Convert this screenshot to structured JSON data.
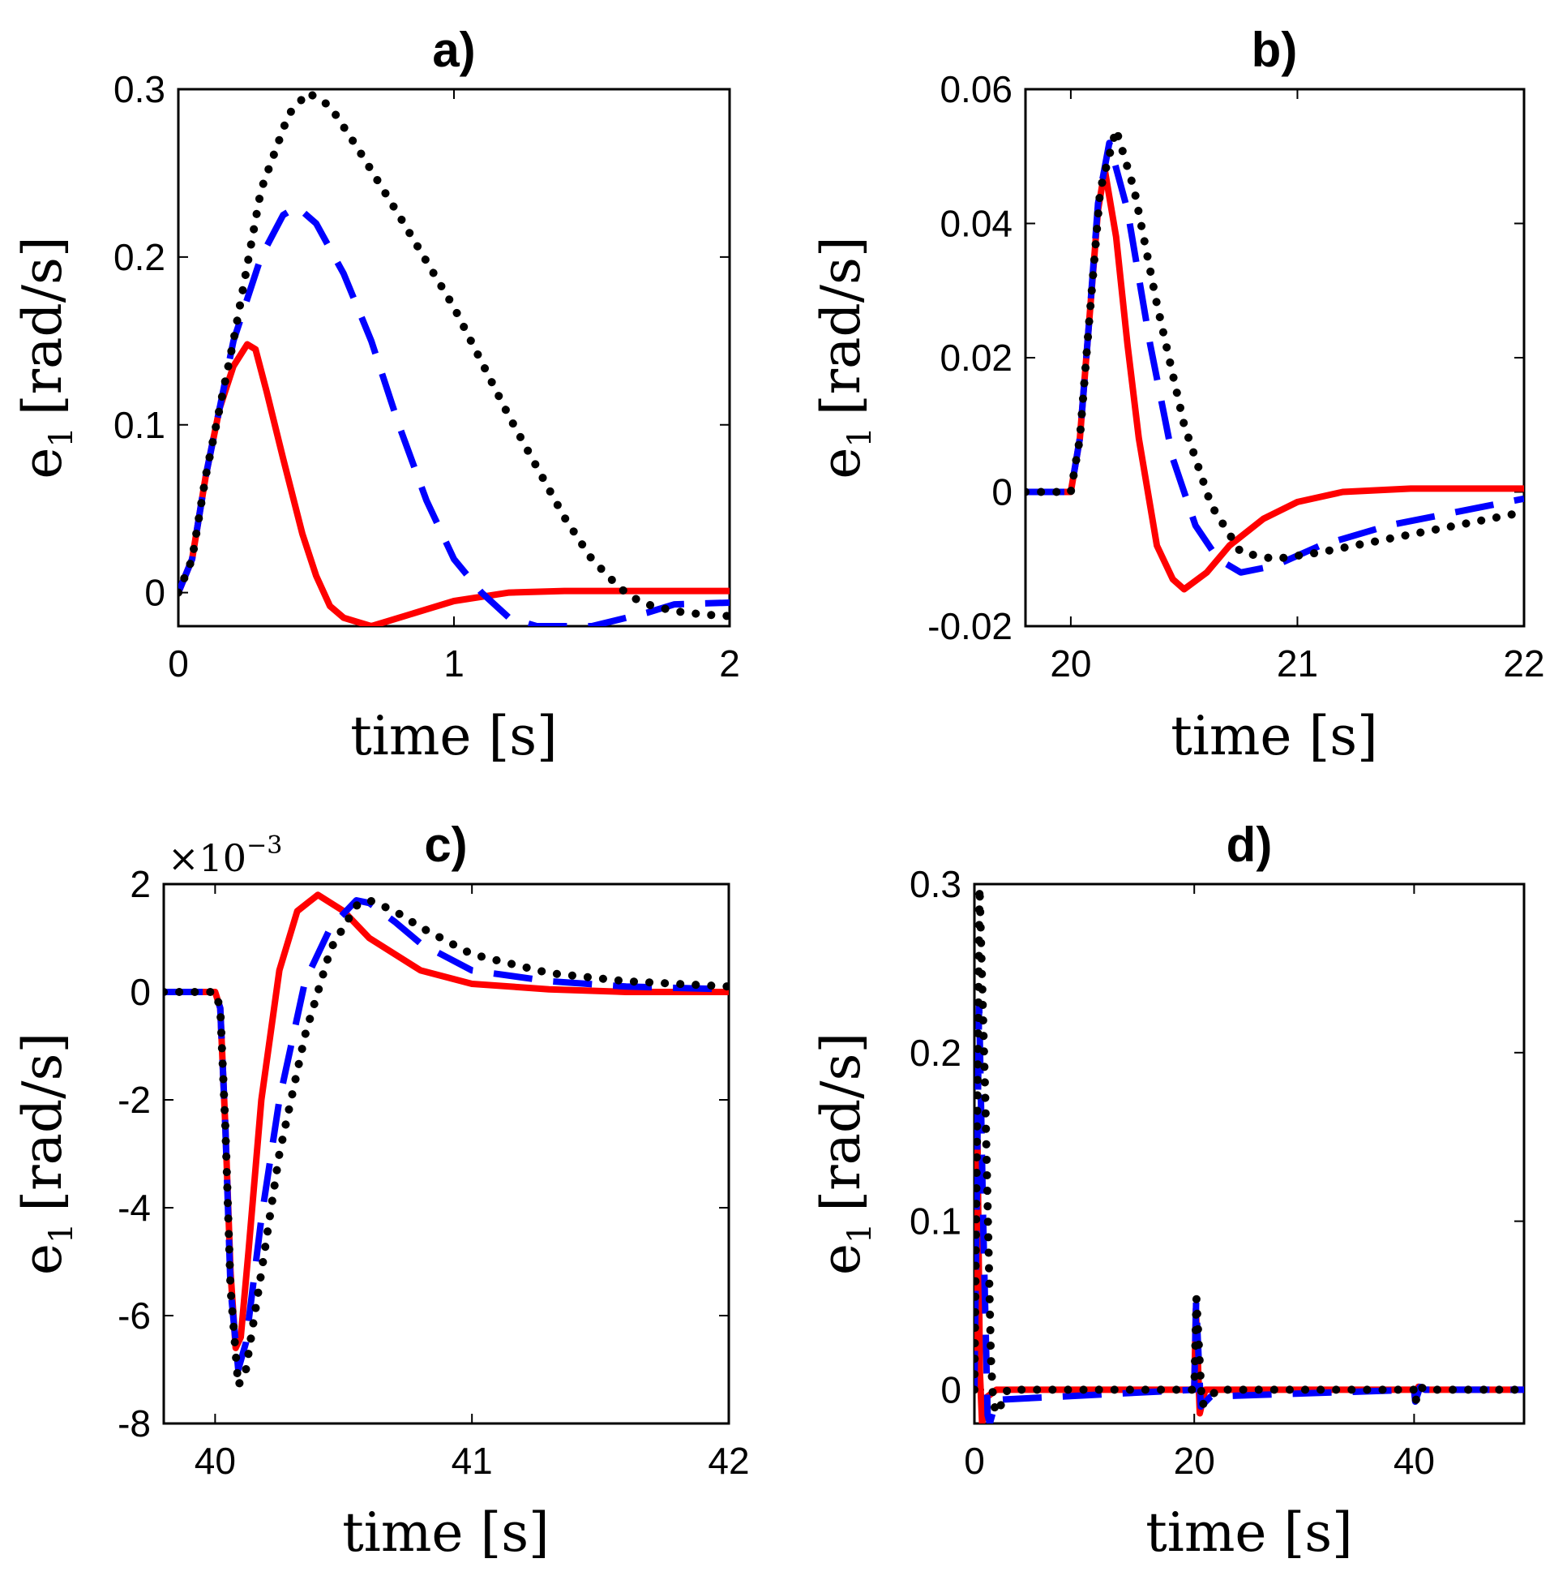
{
  "chart_data": [
    {
      "type": "line",
      "title": "a)",
      "xlabel": "time [s]",
      "ylabel": {
        "symbol": "e",
        "subscript": "1",
        "units": "[rad/s]"
      },
      "xlim": [
        0,
        2
      ],
      "ylim": [
        -0.02,
        0.3
      ],
      "xticks": [
        0,
        1,
        2
      ],
      "xtick_labels": [
        "0",
        "1",
        "2"
      ],
      "yticks": [
        0,
        0.1,
        0.2,
        0.3
      ],
      "ytick_labels": [
        "0",
        "0.1",
        "0.2",
        "0.3"
      ],
      "series": [
        {
          "name": "red-solid",
          "color": "#ff0000",
          "style": "solid",
          "x": [
            0,
            0.05,
            0.1,
            0.15,
            0.2,
            0.25,
            0.28,
            0.32,
            0.38,
            0.45,
            0.5,
            0.55,
            0.6,
            0.7,
            0.8,
            0.9,
            1.0,
            1.2,
            1.4,
            1.6,
            2.0
          ],
          "y": [
            0,
            0.02,
            0.07,
            0.11,
            0.135,
            0.148,
            0.145,
            0.12,
            0.08,
            0.035,
            0.01,
            -0.008,
            -0.015,
            -0.02,
            -0.015,
            -0.01,
            -0.005,
            0,
            0.001,
            0.001,
            0.001
          ]
        },
        {
          "name": "blue-dashed",
          "color": "#0000ff",
          "style": "dashed",
          "x": [
            0,
            0.05,
            0.1,
            0.15,
            0.2,
            0.3,
            0.38,
            0.43,
            0.5,
            0.6,
            0.7,
            0.8,
            0.9,
            1.0,
            1.1,
            1.2,
            1.3,
            1.5,
            1.7,
            1.8,
            2.0
          ],
          "y": [
            0,
            0.02,
            0.07,
            0.11,
            0.15,
            0.2,
            0.225,
            0.23,
            0.22,
            0.19,
            0.15,
            0.1,
            0.055,
            0.02,
            0,
            -0.015,
            -0.02,
            -0.02,
            -0.012,
            -0.007,
            -0.006
          ]
        },
        {
          "name": "black-dotted",
          "color": "#000000",
          "style": "dotted",
          "x": [
            0,
            0.05,
            0.1,
            0.15,
            0.2,
            0.3,
            0.4,
            0.47,
            0.55,
            0.65,
            0.8,
            1.0,
            1.2,
            1.4,
            1.5,
            1.6,
            1.65,
            1.7,
            1.8,
            1.9,
            2.0
          ],
          "y": [
            0,
            0.02,
            0.07,
            0.11,
            0.15,
            0.24,
            0.285,
            0.298,
            0.29,
            0.265,
            0.225,
            0.17,
            0.105,
            0.045,
            0.02,
            0.003,
            -0.003,
            -0.007,
            -0.011,
            -0.013,
            -0.014
          ]
        }
      ]
    },
    {
      "type": "line",
      "title": "b)",
      "xlabel": "time [s]",
      "ylabel": {
        "symbol": "e",
        "subscript": "1",
        "units": "[rad/s]"
      },
      "xlim": [
        19.8,
        22
      ],
      "ylim": [
        -0.02,
        0.06
      ],
      "xticks": [
        20,
        21,
        22
      ],
      "xtick_labels": [
        "20",
        "21",
        "22"
      ],
      "yticks": [
        -0.02,
        0,
        0.02,
        0.04,
        0.06
      ],
      "ytick_labels": [
        "-0.02",
        "0",
        "0.02",
        "0.04",
        "0.06"
      ],
      "series": [
        {
          "name": "red-solid",
          "color": "#ff0000",
          "style": "solid",
          "x": [
            19.8,
            20.0,
            20.04,
            20.08,
            20.12,
            20.15,
            20.2,
            20.25,
            20.3,
            20.38,
            20.45,
            20.5,
            20.6,
            20.7,
            20.85,
            21.0,
            21.2,
            21.5,
            22.0
          ],
          "y": [
            0,
            0,
            0.008,
            0.025,
            0.042,
            0.048,
            0.038,
            0.022,
            0.008,
            -0.008,
            -0.013,
            -0.0145,
            -0.012,
            -0.008,
            -0.004,
            -0.0015,
            0,
            0.0005,
            0.0005
          ]
        },
        {
          "name": "blue-dashed",
          "color": "#0000ff",
          "style": "dashed",
          "x": [
            19.8,
            20.0,
            20.04,
            20.08,
            20.12,
            20.17,
            20.25,
            20.35,
            20.45,
            20.55,
            20.65,
            20.75,
            20.9,
            21.1,
            21.4,
            21.7,
            22.0
          ],
          "y": [
            0,
            0,
            0.008,
            0.025,
            0.043,
            0.052,
            0.042,
            0.022,
            0.005,
            -0.005,
            -0.01,
            -0.012,
            -0.011,
            -0.008,
            -0.005,
            -0.003,
            -0.001
          ]
        },
        {
          "name": "black-dotted",
          "color": "#000000",
          "style": "dotted",
          "x": [
            19.8,
            20.0,
            20.04,
            20.08,
            20.13,
            20.2,
            20.28,
            20.38,
            20.5,
            20.62,
            20.75,
            20.9,
            21.1,
            21.4,
            21.7,
            22.0
          ],
          "y": [
            0,
            0,
            0.008,
            0.025,
            0.045,
            0.054,
            0.045,
            0.028,
            0.01,
            -0.002,
            -0.009,
            -0.01,
            -0.009,
            -0.007,
            -0.005,
            -0.003
          ]
        }
      ]
    },
    {
      "type": "line",
      "title": "c)",
      "xlabel": "time [s]",
      "ylabel": {
        "symbol": "e",
        "subscript": "1",
        "units": "[rad/s]"
      },
      "y_multiplier": {
        "base": "×10",
        "exponent": "−3"
      },
      "xlim": [
        39.8,
        42
      ],
      "ylim": [
        -8,
        2
      ],
      "xticks": [
        40,
        41,
        42
      ],
      "xtick_labels": [
        "40",
        "41",
        "42"
      ],
      "yticks": [
        -8,
        -6,
        -4,
        -2,
        0,
        2
      ],
      "ytick_labels": [
        "-8",
        "-6",
        "-4",
        "-2",
        "0",
        "2"
      ],
      "series": [
        {
          "name": "red-solid",
          "color": "#ff0000",
          "style": "solid",
          "x": [
            39.8,
            40.0,
            40.02,
            40.04,
            40.06,
            40.08,
            40.1,
            40.13,
            40.18,
            40.25,
            40.32,
            40.4,
            40.5,
            40.6,
            40.8,
            41.0,
            41.3,
            41.6,
            42.0
          ],
          "y": [
            0,
            0,
            -0.3,
            -2.5,
            -5.2,
            -6.6,
            -6.4,
            -4.8,
            -2.0,
            0.4,
            1.5,
            1.8,
            1.5,
            1.0,
            0.4,
            0.15,
            0.05,
            0,
            0
          ]
        },
        {
          "name": "blue-dashed",
          "color": "#0000ff",
          "style": "dashed",
          "x": [
            39.8,
            40.0,
            40.02,
            40.04,
            40.06,
            40.09,
            40.12,
            40.18,
            40.25,
            40.35,
            40.45,
            40.55,
            40.6,
            40.7,
            40.8,
            41.0,
            41.3,
            41.6,
            42.0
          ],
          "y": [
            0,
            0,
            -0.3,
            -2.5,
            -5.5,
            -7.0,
            -6.5,
            -4.2,
            -2.0,
            0.2,
            1.2,
            1.7,
            1.65,
            1.3,
            0.9,
            0.4,
            0.2,
            0.1,
            0.05
          ]
        },
        {
          "name": "black-dotted",
          "color": "#000000",
          "style": "dotted",
          "x": [
            39.8,
            40.0,
            40.02,
            40.04,
            40.06,
            40.09,
            40.12,
            40.18,
            40.25,
            40.35,
            40.45,
            40.55,
            40.6,
            40.7,
            40.8,
            41.0,
            41.3,
            41.6,
            42.0
          ],
          "y": [
            0,
            0,
            -0.3,
            -2.5,
            -5.5,
            -7.3,
            -7.0,
            -5.2,
            -3.0,
            -0.8,
            0.8,
            1.6,
            1.7,
            1.5,
            1.2,
            0.7,
            0.35,
            0.2,
            0.1
          ]
        }
      ]
    },
    {
      "type": "line",
      "title": "d)",
      "xlabel": "time [s]",
      "ylabel": {
        "symbol": "e",
        "subscript": "1",
        "units": "[rad/s]"
      },
      "xlim": [
        0,
        50
      ],
      "ylim": [
        -0.02,
        0.3
      ],
      "xticks": [
        0,
        20,
        40
      ],
      "xtick_labels": [
        "0",
        "20",
        "40"
      ],
      "yticks": [
        0,
        0.1,
        0.2,
        0.3
      ],
      "ytick_labels": [
        "0",
        "0.1",
        "0.2",
        "0.3"
      ],
      "series": [
        {
          "name": "red-solid",
          "color": "#ff0000",
          "style": "solid",
          "x": [
            0,
            0.28,
            0.5,
            0.7,
            1.0,
            2.0,
            20.0,
            20.15,
            20.5,
            21.0,
            40.0,
            40.1,
            40.4,
            41.0,
            50.0
          ],
          "y": [
            0,
            0.148,
            0.01,
            -0.02,
            -0.005,
            0,
            0,
            0.048,
            -0.014,
            0,
            0,
            -0.0066,
            0.0018,
            0,
            0
          ]
        },
        {
          "name": "blue-dashed",
          "color": "#0000ff",
          "style": "dashed",
          "x": [
            0,
            0.43,
            0.8,
            1.2,
            1.4,
            2.0,
            20.0,
            20.17,
            20.6,
            21.5,
            40.0,
            40.1,
            40.55,
            41.0,
            50.0
          ],
          "y": [
            0,
            0.23,
            0.1,
            -0.015,
            -0.02,
            -0.006,
            0,
            0.052,
            -0.01,
            -0.004,
            0,
            -0.007,
            0.0017,
            0,
            0
          ]
        },
        {
          "name": "black-dotted",
          "color": "#000000",
          "style": "dotted",
          "x": [
            0,
            0.47,
            1.0,
            1.5,
            1.7,
            2.0,
            2.5,
            3.0,
            20.0,
            20.2,
            20.7,
            21.5,
            22.0,
            40.0,
            40.1,
            40.6,
            41.0,
            50.0
          ],
          "y": [
            0,
            0.298,
            0.17,
            0.02,
            -0.007,
            -0.014,
            -0.008,
            0,
            0,
            0.054,
            -0.009,
            -0.005,
            0,
            0,
            -0.0073,
            0.0017,
            0,
            0
          ]
        }
      ]
    }
  ]
}
